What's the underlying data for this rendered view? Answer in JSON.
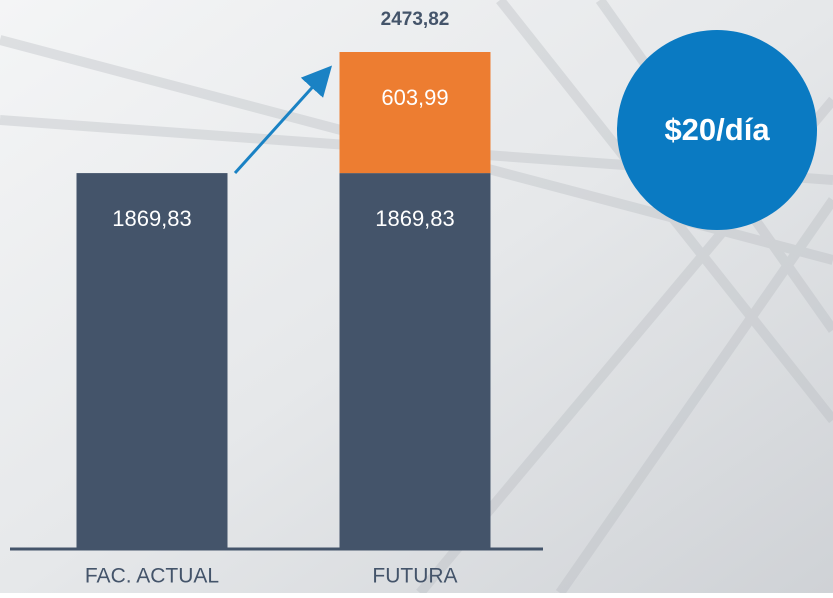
{
  "chart_data": {
    "type": "stacked-bar",
    "categories": [
      "FAC. ACTUAL",
      "FUTURA"
    ],
    "series": [
      {
        "color": "#44546a",
        "values": [
          1869.83,
          1869.83
        ],
        "value_labels": [
          "1869,83",
          "1869,83"
        ]
      },
      {
        "color": "#ed7d31",
        "values": [
          null,
          603.99
        ],
        "value_labels": [
          null,
          "603,99"
        ]
      }
    ],
    "totals": {
      "values": [
        null,
        2473.82
      ],
      "value_labels": [
        null,
        "2473,82"
      ]
    },
    "annotation": "$20/día",
    "annotation_color": "#0a7ac2"
  }
}
